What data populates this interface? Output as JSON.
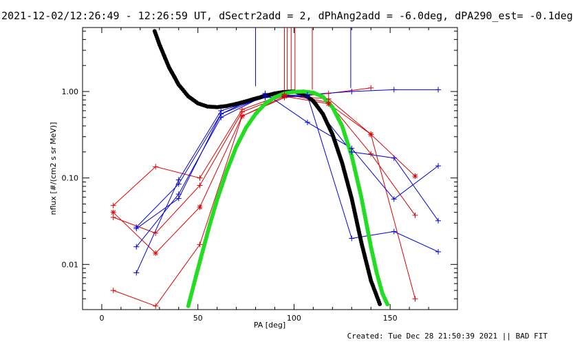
{
  "title": "2021-12-02/12:26:49 - 12:26:59 UT, dSectr2add = 2, dPhAng2add = -6.0deg, dPA290_est= -0.1deg",
  "footer": "Created: Tue Dec 28 21:50:39 2021 || BAD FIT",
  "chart_data": {
    "type": "scatter",
    "xlabel": "PA [deg]",
    "ylabel": "nflux [#/(cm2 s sr MeV)]",
    "xlim": [
      -10,
      185
    ],
    "ylim": [
      0.003,
      5.5
    ],
    "yscale": "log",
    "xticks": [
      0,
      50,
      100,
      150
    ],
    "xtick_labels": [
      "0",
      "50",
      "100",
      "150"
    ],
    "yticks": [
      0.01,
      0.1,
      1.0
    ],
    "ytick_labels": [
      "0.01",
      "0.10",
      "1.00"
    ],
    "colors": {
      "blue": "#0000dd",
      "red": "#dd0000",
      "black": "#000000",
      "green": "#22dd22"
    },
    "series": [
      {
        "color": "red",
        "marker": "+",
        "x": [
          6,
          28,
          51,
          73,
          95,
          118,
          140,
          163
        ],
        "y": [
          0.048,
          0.135,
          0.1,
          0.62,
          0.93,
          0.75,
          0.19,
          0.037
        ]
      },
      {
        "color": "red",
        "marker": "+",
        "x": [
          6,
          28,
          51,
          73,
          95,
          118,
          140,
          163
        ],
        "y": [
          0.035,
          0.023,
          0.082,
          0.58,
          0.9,
          0.82,
          0.32,
          0.004
        ]
      },
      {
        "color": "red",
        "marker": "+",
        "x": [
          6,
          28,
          51,
          73,
          95,
          118,
          140
        ],
        "y": [
          0.005,
          0.0033,
          0.017,
          0.52,
          0.85,
          0.95,
          1.1
        ]
      },
      {
        "color": "red",
        "marker": "*",
        "x": [
          6,
          28,
          51,
          73,
          95,
          118,
          140,
          163
        ],
        "y": [
          0.04,
          0.0135,
          0.046,
          0.52,
          0.88,
          0.72,
          0.32,
          0.105
        ]
      },
      {
        "color": "blue",
        "marker": "+",
        "x": [
          18,
          40,
          62,
          85,
          107,
          130,
          152,
          175
        ],
        "y": [
          0.027,
          0.085,
          0.55,
          0.95,
          0.44,
          0.22,
          0.057,
          0.138
        ]
      },
      {
        "color": "blue",
        "marker": "+",
        "x": [
          18,
          40,
          62,
          85,
          107,
          130,
          152,
          175
        ],
        "y": [
          0.016,
          0.065,
          0.5,
          0.9,
          0.87,
          0.2,
          0.17,
          0.032
        ]
      },
      {
        "color": "blue",
        "marker": "+",
        "x": [
          18,
          40,
          62,
          85,
          107,
          130,
          152,
          175
        ],
        "y": [
          0.008,
          0.095,
          0.6,
          0.85,
          0.9,
          0.02,
          0.024,
          0.014
        ]
      },
      {
        "color": "blue",
        "marker": "+",
        "x": [
          18,
          40,
          62,
          85,
          107,
          130,
          152,
          175
        ],
        "y": [
          0.026,
          0.058,
          0.55,
          0.88,
          0.92,
          1.0,
          1.05,
          1.05
        ]
      }
    ],
    "fits": [
      {
        "color": "black",
        "x": [
          27.5,
          30,
          35,
          40,
          45,
          50,
          55,
          60,
          65,
          70,
          75,
          80,
          85,
          90,
          95,
          100,
          105,
          110,
          115,
          120,
          125,
          130,
          135,
          140,
          145
        ],
        "y": [
          5.0,
          3.5,
          1.9,
          1.2,
          0.88,
          0.73,
          0.67,
          0.66,
          0.68,
          0.72,
          0.77,
          0.83,
          0.89,
          0.95,
          0.99,
          1.0,
          0.93,
          0.78,
          0.55,
          0.32,
          0.15,
          0.058,
          0.018,
          0.0065,
          0.0033
        ]
      },
      {
        "color": "green",
        "x": [
          45,
          48,
          52,
          56,
          60,
          65,
          70,
          75,
          80,
          85,
          90,
          95,
          100,
          105,
          110,
          115,
          120,
          125,
          130,
          135,
          140,
          143,
          146,
          149
        ],
        "y": [
          0.0033,
          0.006,
          0.013,
          0.028,
          0.056,
          0.12,
          0.23,
          0.38,
          0.55,
          0.72,
          0.86,
          0.95,
          0.99,
          1.0,
          0.97,
          0.87,
          0.66,
          0.4,
          0.18,
          0.06,
          0.016,
          0.008,
          0.0046,
          0.0033
        ]
      }
    ],
    "vlines": [
      {
        "color": "blue",
        "x": 80,
        "y_from": 1.15
      },
      {
        "color": "red",
        "x": 95,
        "y_from": 1.05
      },
      {
        "color": "red",
        "x": 96.5,
        "y_from": 1.05
      },
      {
        "color": "red",
        "x": 98.5,
        "y_from": 1.05
      },
      {
        "color": "red",
        "x": 100.5,
        "y_from": 1.05
      },
      {
        "color": "red",
        "x": 109.5,
        "y_from": 1.05
      },
      {
        "color": "blue",
        "x": 129.5,
        "y_from": 1.1
      }
    ]
  }
}
